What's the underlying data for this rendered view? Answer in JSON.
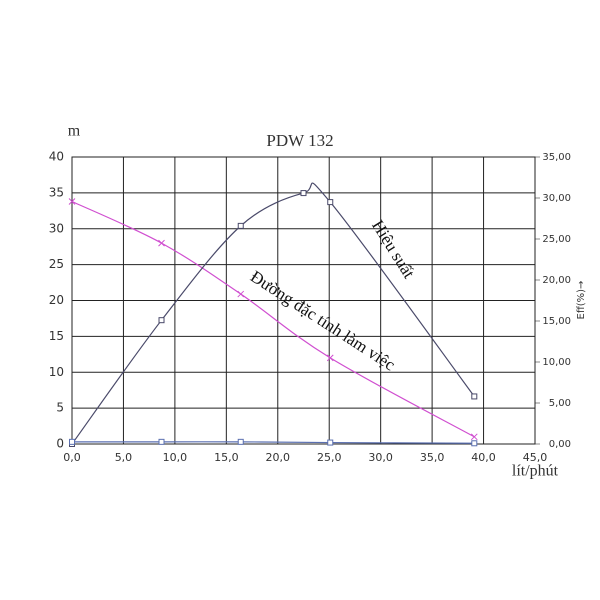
{
  "chart_data": {
    "type": "line",
    "title": "PDW 132",
    "y_label": "m",
    "x_label": "lít/phút",
    "y2_label": "Eff(%)→",
    "xlim": [
      0,
      45
    ],
    "xticks": [
      {
        "value": 0,
        "label": "0,0"
      },
      {
        "value": 5,
        "label": "5,0"
      },
      {
        "value": 10,
        "label": "10,0"
      },
      {
        "value": 15,
        "label": "15,0"
      },
      {
        "value": 20,
        "label": "20,0"
      },
      {
        "value": 25,
        "label": "25,0"
      },
      {
        "value": 30,
        "label": "30,0"
      },
      {
        "value": 35,
        "label": "35,0"
      },
      {
        "value": 40,
        "label": "40,0"
      },
      {
        "value": 45,
        "label": "45,0"
      }
    ],
    "ylim": [
      0,
      40
    ],
    "yticks": [
      0,
      5,
      10,
      15,
      20,
      25,
      30,
      35,
      40
    ],
    "y2lim": [
      0,
      35
    ],
    "y2ticks": [
      {
        "value": 0,
        "label": "0,00"
      },
      {
        "value": 5,
        "label": "5,00"
      },
      {
        "value": 10,
        "label": "10,00"
      },
      {
        "value": 15,
        "label": "15,00"
      },
      {
        "value": 20,
        "label": "20,00"
      },
      {
        "value": 25,
        "label": "25,00"
      },
      {
        "value": 30,
        "label": "30,00"
      },
      {
        "value": 35,
        "label": "35,00"
      }
    ],
    "grid": true,
    "annotations": [
      "Hiệu suất",
      "Đường đặc tính làm việc"
    ],
    "series": [
      {
        "color": "#d04fd0",
        "marker": "x",
        "x": [
          0,
          8.7,
          16.4,
          25.1,
          39.1
        ],
        "values": [
          33.8,
          28,
          20.9,
          12,
          1
        ]
      },
      {
        "color": "#4a4a6a",
        "marker": "square",
        "axis": "y2",
        "x": [
          0,
          8.7,
          16.4,
          22.5,
          25.1,
          39.1
        ],
        "values": [
          0,
          15.1,
          26.6,
          30.6,
          29.5,
          5.8
        ]
      },
      {
        "color": "#5a6fb0",
        "marker": "square",
        "x": [
          0,
          8.7,
          16.4,
          25.1,
          39.1
        ],
        "values": [
          0.3,
          0.3,
          0.3,
          0.2,
          0.1
        ]
      }
    ]
  }
}
